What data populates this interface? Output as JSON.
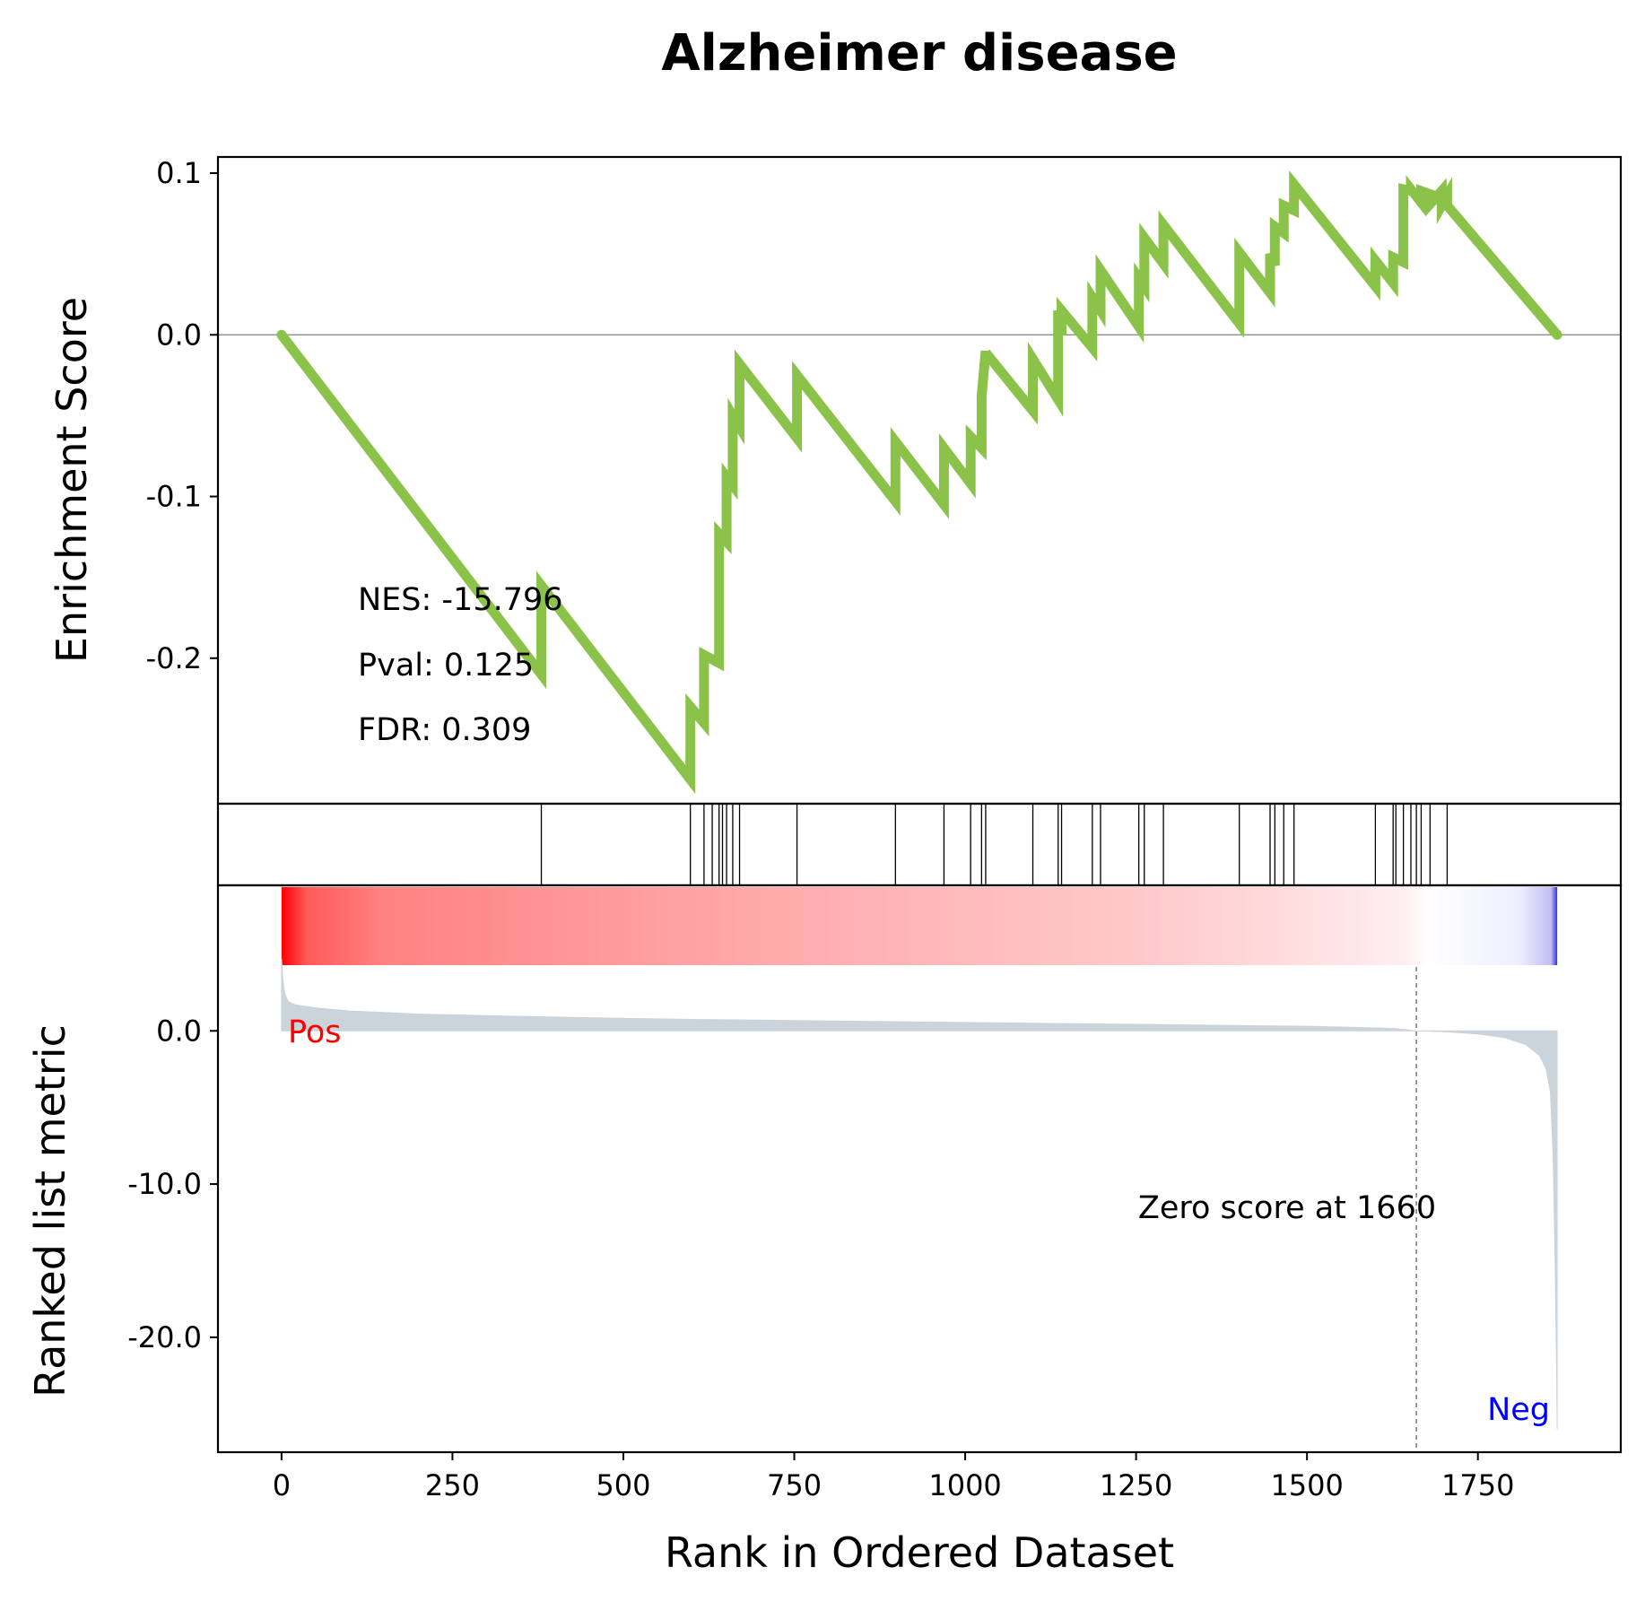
{
  "chart_data": {
    "type": "line",
    "title": "Alzheimer disease",
    "es_panel": {
      "ylabel": "Enrichment Score",
      "ylim": [
        -0.29,
        0.11
      ],
      "yticks": [
        0.1,
        0.0,
        -0.1,
        -0.2
      ],
      "ytick_labels": [
        "0.1",
        "0.0",
        "-0.1",
        "-0.2"
      ],
      "zero_line": true,
      "stats": {
        "nes": "NES: -15.796",
        "pval": "Pval: 0.125",
        "fdr": "FDR: 0.309"
      },
      "series": [
        {
          "color": "#8bc34a",
          "x": [
            0,
            380,
            380,
            598,
            598,
            618,
            618,
            640,
            640,
            651,
            651,
            660,
            660,
            670,
            670,
            754,
            754,
            898,
            898,
            969,
            969,
            1008,
            1008,
            1024,
            1024,
            1030,
            1030,
            1099,
            1099,
            1136,
            1136,
            1141,
            1141,
            1186,
            1186,
            1198,
            1198,
            1254,
            1254,
            1262,
            1262,
            1290,
            1290,
            1401,
            1401,
            1446,
            1446,
            1453,
            1453,
            1466,
            1466,
            1481,
            1481,
            1600,
            1600,
            1626,
            1626,
            1641,
            1641,
            1652,
            1652,
            1667,
            1667,
            1680,
            1680,
            1697,
            1697,
            1705,
            1705,
            1866
          ],
          "y": [
            0.0,
            -0.21,
            -0.155,
            -0.275,
            -0.23,
            -0.24,
            -0.198,
            -0.203,
            -0.123,
            -0.128,
            -0.088,
            -0.093,
            -0.05,
            -0.057,
            -0.018,
            -0.064,
            -0.025,
            -0.103,
            -0.066,
            -0.105,
            -0.07,
            -0.092,
            -0.063,
            -0.07,
            -0.038,
            -0.01,
            -0.011,
            -0.047,
            -0.015,
            -0.04,
            0.015,
            0.0,
            0.015,
            -0.008,
            0.023,
            0.015,
            0.04,
            0.005,
            0.035,
            0.03,
            0.06,
            0.044,
            0.068,
            0.007,
            0.051,
            0.026,
            0.05,
            0.043,
            0.067,
            0.063,
            0.08,
            0.077,
            0.093,
            0.03,
            0.046,
            0.032,
            0.048,
            0.045,
            0.09,
            0.089,
            0.09,
            0.082,
            0.089,
            0.087,
            0.081,
            0.089,
            0.08,
            0.086,
            0.08,
            0.0
          ]
        }
      ]
    },
    "hits_panel": {
      "hits": [
        380,
        598,
        618,
        630,
        640,
        645,
        651,
        660,
        670,
        754,
        898,
        969,
        1008,
        1024,
        1030,
        1099,
        1136,
        1141,
        1186,
        1198,
        1254,
        1262,
        1290,
        1401,
        1446,
        1453,
        1466,
        1481,
        1600,
        1626,
        1630,
        1641,
        1652,
        1660,
        1667,
        1680,
        1705
      ]
    },
    "rank_panel": {
      "ylabel": "Ranked list metric",
      "ylim": [
        -27.5,
        9.5
      ],
      "yticks": [
        0.0,
        -10.0,
        -20.0
      ],
      "ytick_labels": [
        "0.0",
        "-10.0",
        "-20.0"
      ],
      "pos_label": "Pos",
      "neg_label": "Neg",
      "pos_color": "#ff0000",
      "neg_color": "#0000ff",
      "fill_color": "#ccd4db",
      "zero_score_at": 1660,
      "zero_label": "Zero score at 1660",
      "metric_x": [
        0,
        2,
        5,
        10,
        20,
        50,
        100,
        150,
        200,
        300,
        400,
        500,
        600,
        700,
        800,
        900,
        1000,
        1100,
        1200,
        1300,
        1400,
        1500,
        1550,
        1600,
        1630,
        1650,
        1660,
        1700,
        1750,
        1790,
        1820,
        1840,
        1850,
        1856,
        1860,
        1863,
        1865,
        1866
      ],
      "metric_y": [
        4.7,
        3.3,
        2.4,
        1.9,
        1.7,
        1.5,
        1.3,
        1.2,
        1.1,
        1.0,
        0.9,
        0.82,
        0.75,
        0.7,
        0.65,
        0.6,
        0.55,
        0.5,
        0.45,
        0.4,
        0.35,
        0.3,
        0.25,
        0.2,
        0.15,
        0.05,
        0.0,
        -0.05,
        -0.2,
        -0.45,
        -0.9,
        -1.6,
        -2.5,
        -4.0,
        -8.0,
        -15.0,
        -22.0,
        -26.0
      ]
    },
    "xaxis": {
      "label": "Rank in Ordered Dataset",
      "xlim": [
        -93,
        1959
      ],
      "ticks": [
        0,
        250,
        500,
        750,
        1000,
        1250,
        1500,
        1750
      ],
      "tick_labels": [
        "0",
        "250",
        "500",
        "750",
        "1000",
        "1250",
        "1500",
        "1750"
      ]
    },
    "colorbar": {
      "from_color": "#ff0000",
      "to_color": "#0000ff"
    }
  }
}
